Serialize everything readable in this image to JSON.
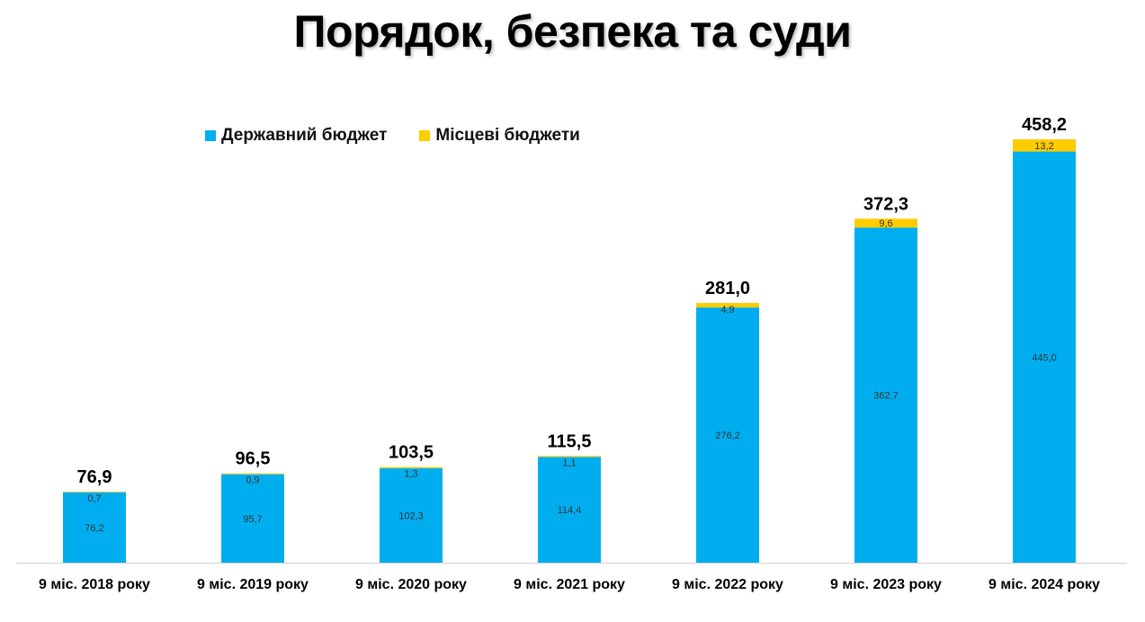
{
  "chart_data": {
    "type": "bar",
    "stacked": true,
    "title": "Порядок, безпека та суди",
    "xlabel": "",
    "ylabel": "",
    "ylim": [
      0,
      460
    ],
    "grid": false,
    "legend_position": "top-left",
    "categories": [
      "9 міс. 2018 року",
      "9 міс. 2019 року",
      "9 міс. 2020 року",
      "9 міс. 2021 року",
      "9 міс. 2022 року",
      "9 міс. 2023 року",
      "9 міс. 2024 року"
    ],
    "series": [
      {
        "name": "Державний бюджет",
        "color": "#00AEEF",
        "values": [
          76.2,
          95.7,
          102.3,
          114.4,
          276.2,
          362.7,
          445.0
        ],
        "labels": [
          "76,2",
          "95,7",
          "102,3",
          "114,4",
          "276,2",
          "362,7",
          "445,0"
        ]
      },
      {
        "name": "Місцеві бюджети",
        "color": "#FFCC00",
        "values": [
          0.7,
          0.9,
          1.3,
          1.1,
          4.9,
          9.6,
          13.2
        ],
        "labels": [
          "0,7",
          "0,9",
          "1,3",
          "1,1",
          "4,9",
          "9,6",
          "13,2"
        ]
      }
    ],
    "totals": [
      76.9,
      96.5,
      103.5,
      115.5,
      281.0,
      372.3,
      458.2
    ],
    "total_labels": [
      "76,9",
      "96,5",
      "103,5",
      "115,5",
      "281,0",
      "372,3",
      "458,2"
    ]
  }
}
